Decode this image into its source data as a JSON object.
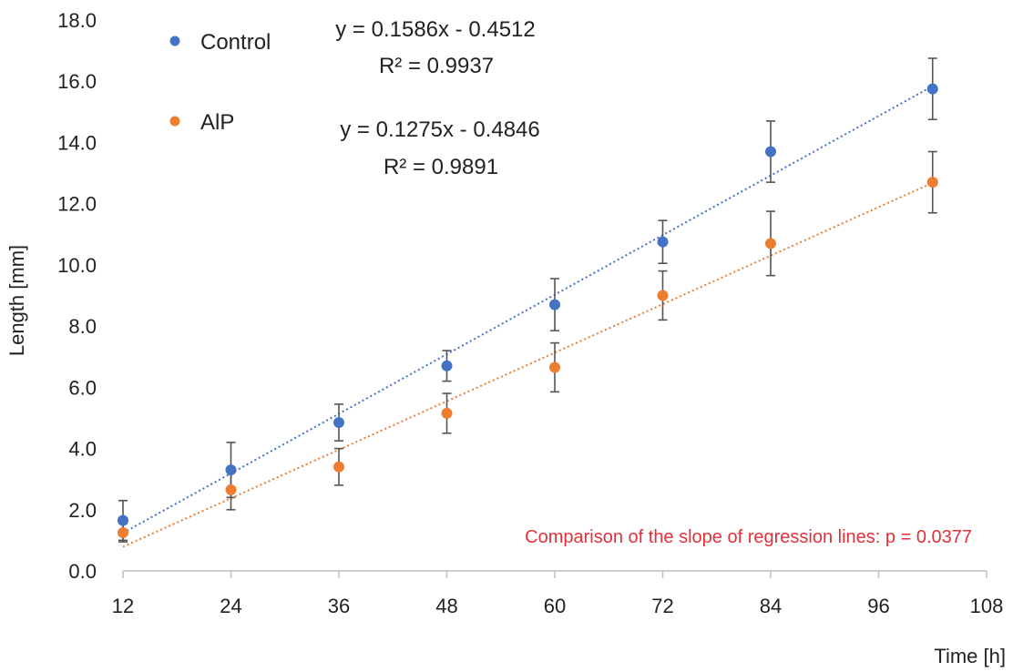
{
  "chart_data": {
    "type": "scatter",
    "xlabel": "Time [h]",
    "ylabel": "Length [mm]",
    "xlim": [
      12,
      108
    ],
    "ylim": [
      0,
      18
    ],
    "x_ticks": [
      "12",
      "24",
      "36",
      "48",
      "60",
      "72",
      "84",
      "96",
      "108"
    ],
    "y_ticks": [
      "0.0",
      "2.0",
      "4.0",
      "6.0",
      "8.0",
      "10.0",
      "12.0",
      "14.0",
      "16.0",
      "18.0"
    ],
    "grid": false,
    "legend_position": "top-left",
    "series": [
      {
        "name": "Control",
        "color": "#4472C4",
        "x": [
          12,
          24,
          36,
          48,
          60,
          72,
          84,
          102
        ],
        "y": [
          1.65,
          3.3,
          4.85,
          6.7,
          8.7,
          10.75,
          13.7,
          15.75
        ],
        "err": [
          0.65,
          0.9,
          0.6,
          0.5,
          0.85,
          0.7,
          1.0,
          1.0
        ],
        "trendline": {
          "equation": "y = 0.1586x - 0.4512",
          "r2": "R² = 0.9937"
        }
      },
      {
        "name": "AlP",
        "color": "#ED7D31",
        "x": [
          12,
          24,
          36,
          48,
          60,
          72,
          84,
          102
        ],
        "y": [
          1.25,
          2.65,
          3.4,
          5.15,
          6.65,
          9.0,
          10.7,
          12.7
        ],
        "err": [
          0.3,
          0.65,
          0.6,
          0.65,
          0.8,
          0.8,
          1.05,
          1.0
        ],
        "trendline": {
          "equation": "y = 0.1275x - 0.4846",
          "r2": "R² = 0.9891"
        }
      }
    ],
    "annotation": {
      "text": "Comparison of the slope of regression lines: p = 0.0377",
      "color": "#E0313A"
    }
  }
}
